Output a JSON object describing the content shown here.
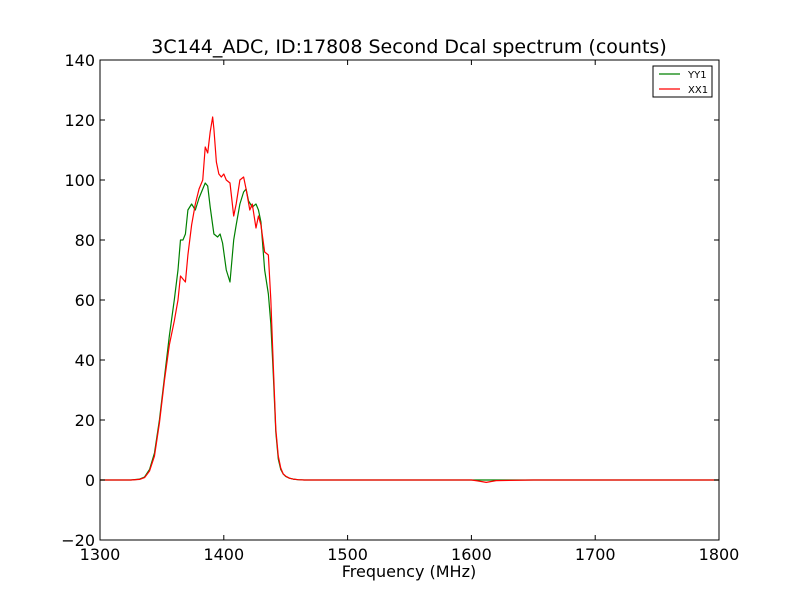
{
  "chart_data": {
    "type": "line",
    "title": "3C144_ADC, ID:17808 Second Dcal spectrum (counts)",
    "xlabel": "Frequency (MHz)",
    "ylabel": "",
    "xlim": [
      1300,
      1800
    ],
    "ylim": [
      -20,
      140
    ],
    "xticks": [
      1300,
      1400,
      1500,
      1600,
      1700,
      1800
    ],
    "yticks": [
      -20,
      0,
      20,
      40,
      60,
      80,
      100,
      120,
      140
    ],
    "xtick_labels": [
      "1300",
      "1400",
      "1500",
      "1600",
      "1700",
      "1800"
    ],
    "ytick_labels": [
      "−20",
      "0",
      "20",
      "40",
      "60",
      "80",
      "100",
      "120",
      "140"
    ],
    "grid": false,
    "legend_position": "top-right",
    "series": [
      {
        "name": "YY1",
        "color": "#008000",
        "x": [
          1300,
          1325,
          1332,
          1336,
          1340,
          1344,
          1348,
          1352,
          1356,
          1360,
          1363,
          1365,
          1367,
          1369,
          1371,
          1374,
          1377,
          1380,
          1383,
          1385,
          1387,
          1389,
          1392,
          1395,
          1397,
          1399,
          1402,
          1405,
          1408,
          1410,
          1413,
          1416,
          1418,
          1420,
          1423,
          1426,
          1428,
          1430,
          1433,
          1436,
          1438,
          1440,
          1442,
          1444,
          1446,
          1448,
          1450,
          1453,
          1456,
          1460,
          1465,
          1470,
          1480,
          1500,
          1550,
          1600,
          1650,
          1700,
          1750,
          1800
        ],
        "y": [
          0,
          0,
          0.3,
          1,
          3.5,
          9,
          20,
          34,
          48,
          60,
          70,
          80,
          80,
          82,
          90,
          92,
          90,
          94,
          97,
          99,
          98,
          91,
          82,
          81,
          82,
          79,
          70,
          66,
          80,
          85,
          92,
          96,
          97,
          93,
          91,
          92,
          90,
          86,
          70,
          62,
          52,
          35,
          16,
          7,
          3.5,
          2,
          1.2,
          0.6,
          0.3,
          0.1,
          0,
          0,
          0,
          0,
          0,
          0,
          0,
          0,
          0,
          0
        ]
      },
      {
        "name": "XX1",
        "color": "#ff0000",
        "x": [
          1300,
          1325,
          1332,
          1336,
          1340,
          1344,
          1348,
          1352,
          1356,
          1360,
          1363,
          1365,
          1367,
          1369,
          1371,
          1374,
          1377,
          1380,
          1383,
          1385,
          1387,
          1389,
          1391,
          1392,
          1394,
          1396,
          1398,
          1400,
          1402,
          1405,
          1408,
          1410,
          1413,
          1416,
          1418,
          1421,
          1423,
          1426,
          1428,
          1430,
          1433,
          1436,
          1438,
          1440,
          1442,
          1444,
          1446,
          1448,
          1450,
          1453,
          1456,
          1460,
          1465,
          1470,
          1480,
          1500,
          1550,
          1600,
          1605,
          1612,
          1620,
          1650,
          1700,
          1750,
          1800
        ],
        "y": [
          0,
          0,
          0.2,
          0.8,
          3,
          8,
          19,
          33,
          45,
          53,
          60,
          68,
          67,
          66,
          75,
          85,
          92,
          97,
          100,
          111,
          109,
          116,
          121,
          117,
          106,
          102,
          101,
          102,
          100,
          99,
          88,
          92,
          100,
          101,
          97,
          90,
          92,
          84,
          88,
          85,
          76,
          75,
          60,
          38,
          17,
          8,
          4,
          2,
          1.3,
          0.6,
          0.3,
          0.1,
          0,
          0,
          0,
          0,
          0,
          0,
          -0.3,
          -0.8,
          -0.2,
          0,
          0,
          0,
          0
        ]
      }
    ]
  }
}
